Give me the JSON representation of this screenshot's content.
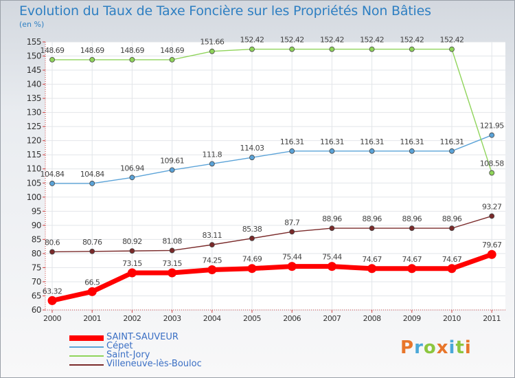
{
  "header": {
    "title": "Evolution du Taux de Taxe Foncière sur les Propriétés Non Bâties",
    "unit": "(en %)"
  },
  "logo": {
    "text": "Proxiti",
    "letters": [
      {
        "ch": "P",
        "color": "#e8762b"
      },
      {
        "ch": "r",
        "color": "#4aa8d8"
      },
      {
        "ch": "o",
        "color": "#8cc63f"
      },
      {
        "ch": "x",
        "color": "#e8762b"
      },
      {
        "ch": "i",
        "color": "#4aa8d8"
      },
      {
        "ch": "t",
        "color": "#8cc63f"
      },
      {
        "ch": "i",
        "color": "#e8762b"
      }
    ]
  },
  "chart_data": {
    "type": "line",
    "title": "Evolution du Taux de Taxe Foncière sur les Propriétés Non Bâties",
    "ylabel": "(en %)",
    "xlabel": "",
    "x": [
      "2000",
      "2001",
      "2002",
      "2003",
      "2004",
      "2005",
      "2006",
      "2007",
      "2008",
      "2009",
      "2010",
      "2011"
    ],
    "ylim": [
      60,
      155
    ],
    "yticks": [
      "60",
      "65",
      "70",
      "75",
      "80",
      "85",
      "90",
      "95",
      "100",
      "105",
      "110",
      "115",
      "120",
      "125",
      "130",
      "135",
      "140",
      "145",
      "150",
      "155"
    ],
    "grid": true,
    "legend_position": "bottom-left",
    "series": [
      {
        "name": "SAINT-SAUVEUR",
        "color": "#ff0000",
        "emphasis": true,
        "values": [
          63.32,
          66.5,
          73.15,
          73.15,
          74.25,
          74.69,
          75.44,
          75.44,
          74.67,
          74.67,
          74.67,
          79.67
        ],
        "labels": [
          "63.32",
          "66.5",
          "73.15",
          "73.15",
          "74.25",
          "74.69",
          "75.44",
          "75.44",
          "74.67",
          "74.67",
          "74.67",
          "79.67"
        ]
      },
      {
        "name": "Cépet",
        "color": "#5ba3d8",
        "values": [
          104.84,
          104.84,
          106.94,
          109.61,
          111.8,
          114.03,
          116.31,
          116.31,
          116.31,
          116.31,
          116.31,
          121.95
        ],
        "labels": [
          "104.84",
          "104.84",
          "106.94",
          "109.61",
          "111.8",
          "114.03",
          "116.31",
          "116.31",
          "116.31",
          "116.31",
          "116.31",
          "121.95"
        ]
      },
      {
        "name": "Saint-Jory",
        "color": "#8fd45a",
        "values": [
          148.69,
          148.69,
          148.69,
          148.69,
          151.66,
          152.42,
          152.42,
          152.42,
          152.42,
          152.42,
          152.42,
          108.58
        ],
        "labels": [
          "148.69",
          "148.69",
          "148.69",
          "148.69",
          "151.66",
          "152.42",
          "152.42",
          "152.42",
          "152.42",
          "152.42",
          "152.42",
          "108.58"
        ]
      },
      {
        "name": "Villeneuve-lès-Bouloc",
        "color": "#7a2a2a",
        "values": [
          80.6,
          80.76,
          80.92,
          81.08,
          83.11,
          85.38,
          87.7,
          88.96,
          88.96,
          88.96,
          88.96,
          93.27
        ],
        "labels": [
          "80.6",
          "80.76",
          "80.92",
          "81.08",
          "83.11",
          "85.38",
          "87.7",
          "88.96",
          "88.96",
          "88.96",
          "88.96",
          "93.27"
        ]
      }
    ]
  }
}
